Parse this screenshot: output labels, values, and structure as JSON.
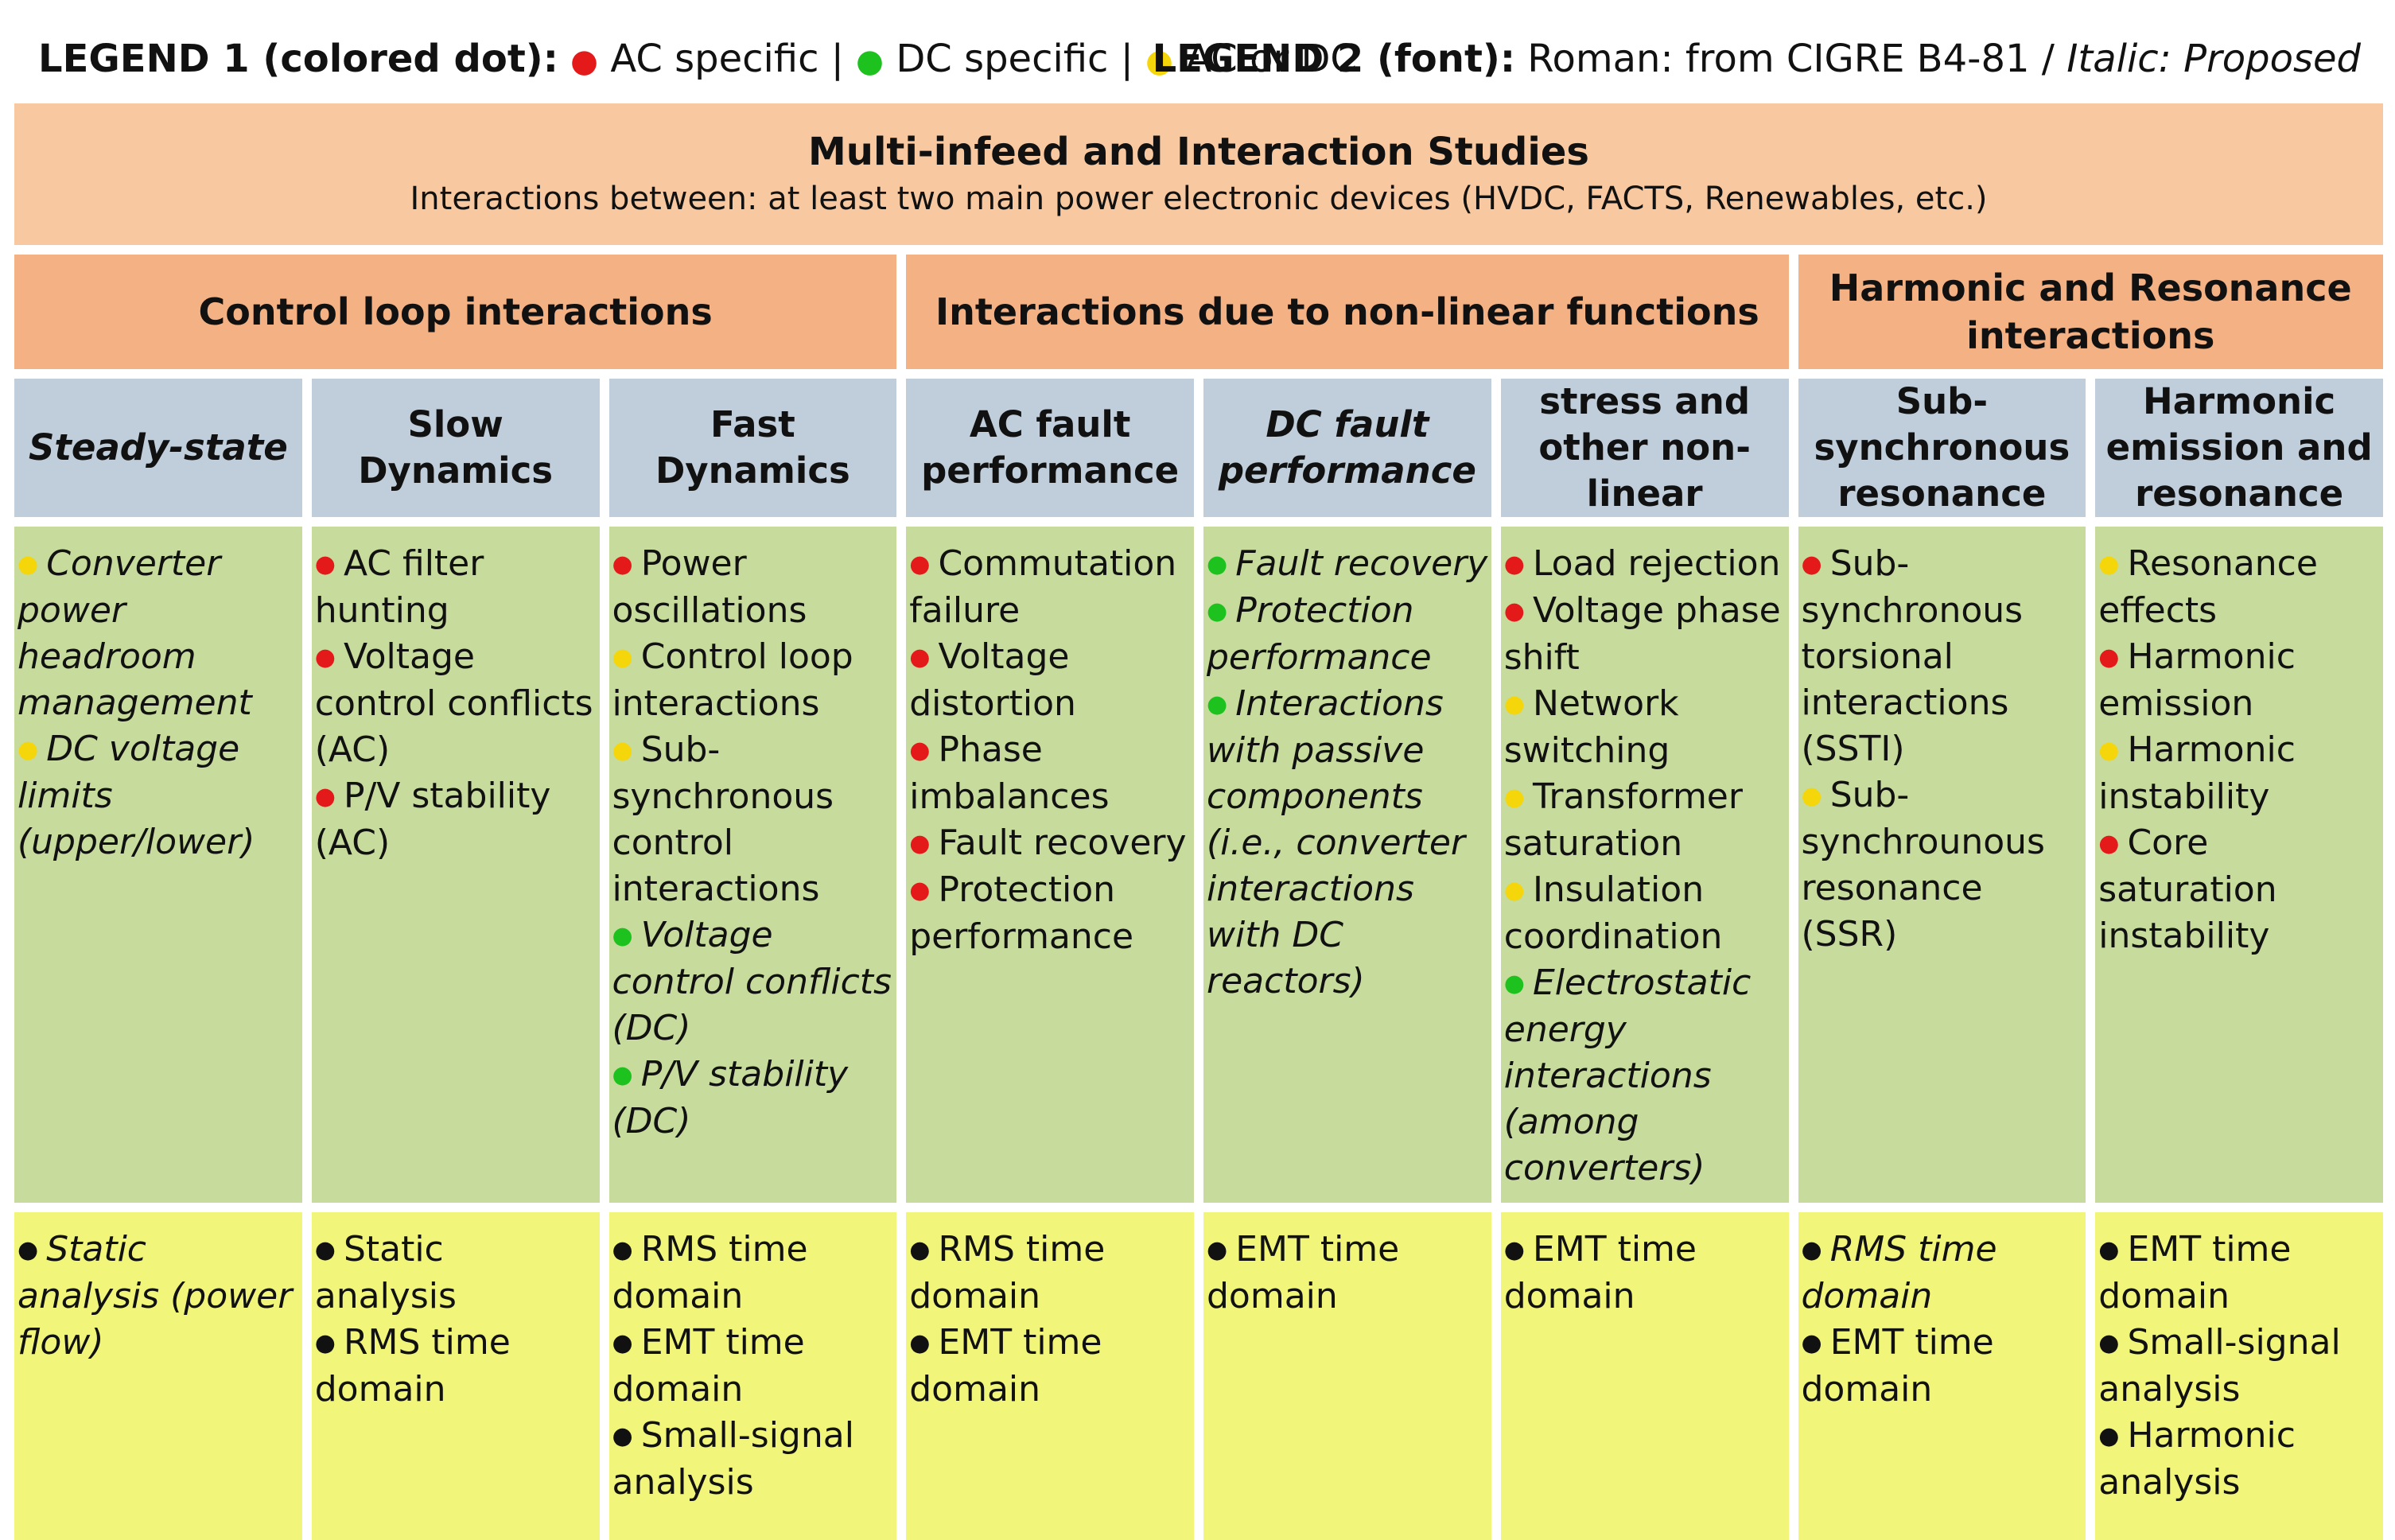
{
  "legend": {
    "legend1_label": "LEGEND 1 (colored dot):",
    "ac_specific": "AC specific",
    "dc_specific": "DC specific",
    "ac_or_dc": "AC or DC",
    "separator": "|",
    "legend2_label": "LEGEND 2 (font):",
    "roman_text": "Roman: from CIGRE B4-81 /",
    "italic_text": "Italic: Proposed"
  },
  "colors": {
    "ac_specific": "#e41a1a",
    "dc_specific": "#1ec21e",
    "ac_or_dc": "#f5d60a",
    "method": "#111111",
    "title_bg": "#f8c9a0",
    "group_bg": "#f4b183",
    "sub_bg": "#c0cedb",
    "issues_bg": "#c6db9c",
    "methods_bg": "#f1f57a"
  },
  "title": {
    "main": "Multi-infeed and Interaction Studies",
    "sub": "Interactions between: at least two main power electronic devices (HVDC, FACTS, Renewables, etc.)"
  },
  "groups": [
    {
      "label": "Control loop interactions"
    },
    {
      "label": "Interactions due to non-linear functions"
    },
    {
      "label": "Harmonic and Resonance interactions"
    }
  ],
  "columns": [
    {
      "header": "Steady-state",
      "header_italic": true,
      "issues": [
        {
          "text": "Converter power headroom management",
          "type": "ac_or_dc",
          "italic": true
        },
        {
          "text": "DC voltage limits (upper/lower)",
          "type": "ac_or_dc",
          "italic": true
        }
      ],
      "methods": [
        {
          "text": "Static analysis (power flow)",
          "italic": true
        }
      ]
    },
    {
      "header": "Slow Dynamics",
      "header_italic": false,
      "issues": [
        {
          "text": "AC filter hunting",
          "type": "ac_specific",
          "italic": false
        },
        {
          "text": "Voltage control conflicts (AC)",
          "type": "ac_specific",
          "italic": false
        },
        {
          "text": "P/V stability (AC)",
          "type": "ac_specific",
          "italic": false
        }
      ],
      "methods": [
        {
          "text": "Static analysis",
          "italic": false
        },
        {
          "text": "RMS time domain",
          "italic": false
        }
      ]
    },
    {
      "header": "Fast Dynamics",
      "header_italic": false,
      "issues": [
        {
          "text": "Power oscillations",
          "type": "ac_specific",
          "italic": false
        },
        {
          "text": "Control loop interactions",
          "type": "ac_or_dc",
          "italic": false
        },
        {
          "text": "Sub-synchronous control interactions",
          "type": "ac_or_dc",
          "italic": false
        },
        {
          "text": "Voltage control conflicts (DC)",
          "type": "dc_specific",
          "italic": true
        },
        {
          "text": "P/V stability (DC)",
          "type": "dc_specific",
          "italic": true
        }
      ],
      "methods": [
        {
          "text": "RMS time domain",
          "italic": false
        },
        {
          "text": "EMT time domain",
          "italic": false
        },
        {
          "text": "Small-signal analysis",
          "italic": false
        }
      ]
    },
    {
      "header": "AC fault performance",
      "header_italic": false,
      "issues": [
        {
          "text": "Commutation failure",
          "type": "ac_specific",
          "italic": false
        },
        {
          "text": "Voltage distortion",
          "type": "ac_specific",
          "italic": false
        },
        {
          "text": "Phase imbalances",
          "type": "ac_specific",
          "italic": false
        },
        {
          "text": "Fault recovery",
          "type": "ac_specific",
          "italic": false
        },
        {
          "text": "Protection performance",
          "type": "ac_specific",
          "italic": false
        }
      ],
      "methods": [
        {
          "text": "RMS time domain",
          "italic": false
        },
        {
          "text": "EMT time domain",
          "italic": false
        }
      ]
    },
    {
      "header": "DC fault performance",
      "header_italic": true,
      "issues": [
        {
          "text": "Fault recovery",
          "type": "dc_specific",
          "italic": true
        },
        {
          "text": "Protection performance",
          "type": "dc_specific",
          "italic": true
        },
        {
          "text": "Interactions with passive components (i.e., converter interactions with DC reactors)",
          "type": "dc_specific",
          "italic": true
        }
      ],
      "methods": [
        {
          "text": "EMT time domain",
          "italic": false
        }
      ]
    },
    {
      "header": "Transient stress and other non-linear interaction",
      "header_italic": false,
      "issues": [
        {
          "text": "Load rejection",
          "type": "ac_specific",
          "italic": false
        },
        {
          "text": "Voltage phase shift",
          "type": "ac_specific",
          "italic": false
        },
        {
          "text": "Network switching",
          "type": "ac_or_dc",
          "italic": false
        },
        {
          "text": "Transformer saturation",
          "type": "ac_or_dc",
          "italic": false
        },
        {
          "text": "Insulation coordination",
          "type": "ac_or_dc",
          "italic": false
        },
        {
          "text": "Electrostatic energy interactions (among converters)",
          "type": "dc_specific",
          "italic": true
        }
      ],
      "methods": [
        {
          "text": "EMT time domain",
          "italic": false
        }
      ]
    },
    {
      "header": "Sub-synchronous resonance",
      "header_italic": false,
      "issues": [
        {
          "text": "Sub-synchronous torsional interactions (SSTI)",
          "type": "ac_specific",
          "italic": false
        },
        {
          "text": "Sub-synchrounous resonance (SSR)",
          "type": "ac_or_dc",
          "italic": false
        }
      ],
      "methods": [
        {
          "text": "RMS time domain",
          "italic": true
        },
        {
          "text": "EMT time domain",
          "italic": false
        }
      ]
    },
    {
      "header": "Harmonic emission and resonance",
      "header_italic": false,
      "issues": [
        {
          "text": "Resonance effects",
          "type": "ac_or_dc",
          "italic": false
        },
        {
          "text": "Harmonic emission",
          "type": "ac_specific",
          "italic": false
        },
        {
          "text": "Harmonic instability",
          "type": "ac_or_dc",
          "italic": false
        },
        {
          "text": "Core saturation instability",
          "type": "ac_specific",
          "italic": false
        }
      ],
      "methods": [
        {
          "text": "EMT time domain",
          "italic": false
        },
        {
          "text": "Small-signal analysis",
          "italic": false
        },
        {
          "text": "Harmonic analysis",
          "italic": false
        }
      ]
    }
  ]
}
